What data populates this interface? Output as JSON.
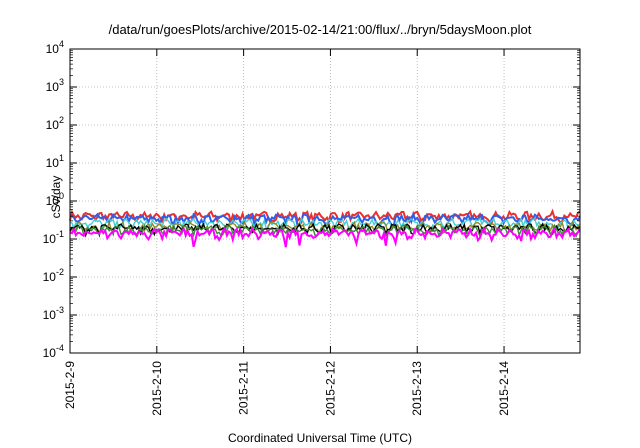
{
  "chart_data": {
    "type": "line",
    "title": "/data/run/goesPlots/archive/2015-02-14/21:00/flux/../bryn/5daysMoon.plot",
    "xlabel": "Coordinated Universal Time (UTC)",
    "ylabel": "cSv/day",
    "yscale": "log",
    "ylim": [
      0.0001,
      10000
    ],
    "y_ticks": [
      {
        "base": "10",
        "exp": "-4"
      },
      {
        "base": "10",
        "exp": "-3"
      },
      {
        "base": "10",
        "exp": "-2"
      },
      {
        "base": "10",
        "exp": "-1"
      },
      {
        "base": "10",
        "exp": "0"
      },
      {
        "base": "10",
        "exp": "1"
      },
      {
        "base": "10",
        "exp": "2"
      },
      {
        "base": "10",
        "exp": "3"
      },
      {
        "base": "10",
        "exp": "4"
      }
    ],
    "xlim": [
      "2015-02-09",
      "2015-02-14T21:00"
    ],
    "x_ticks": [
      "2015-2-9",
      "2015-2-10",
      "2015-2-11",
      "2015-2-12",
      "2015-2-13",
      "2015-2-14"
    ],
    "grid": true,
    "legend": "none",
    "series": [
      {
        "color": "#e8312f",
        "level": 0.4
      },
      {
        "color": "#2f5fe8",
        "level": 0.34
      },
      {
        "color": "#3fd0d6",
        "level": 0.26
      },
      {
        "color": "#8c8c2a",
        "level": 0.21
      },
      {
        "color": "#000000",
        "level": 0.19
      },
      {
        "color": "#3a8c3a",
        "level": 0.175
      },
      {
        "color": "#ff00ff",
        "level": 0.14
      }
    ]
  }
}
